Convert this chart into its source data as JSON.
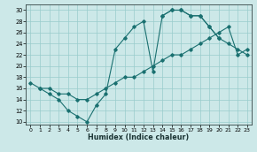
{
  "title": "",
  "xlabel": "Humidex (Indice chaleur)",
  "xlim": [
    -0.5,
    23.5
  ],
  "ylim": [
    9.5,
    31.0
  ],
  "xticks": [
    0,
    1,
    2,
    3,
    4,
    5,
    6,
    7,
    8,
    9,
    10,
    11,
    12,
    13,
    14,
    15,
    16,
    17,
    18,
    19,
    20,
    21,
    22,
    23
  ],
  "yticks": [
    10,
    12,
    14,
    16,
    18,
    20,
    22,
    24,
    26,
    28,
    30
  ],
  "bg_color": "#cce8e8",
  "line_color": "#1a7070",
  "grid_color": "#99cccc",
  "series": [
    {
      "x": [
        0,
        1,
        2,
        3,
        4,
        5,
        6,
        7,
        8,
        9,
        10,
        11,
        12,
        13,
        14,
        15,
        16,
        17,
        18,
        19,
        20
      ],
      "y": [
        17,
        16,
        15,
        14,
        12,
        11,
        10,
        13,
        15,
        23,
        25,
        27,
        28,
        19,
        29,
        30,
        30,
        29,
        29,
        27,
        25
      ]
    },
    {
      "x": [
        14,
        15,
        16,
        17,
        18,
        19,
        20,
        21,
        22,
        23
      ],
      "y": [
        29,
        30,
        30,
        29,
        29,
        27,
        25,
        24,
        23,
        22
      ]
    },
    {
      "x": [
        1,
        2,
        3,
        4,
        5,
        6,
        7,
        8,
        9,
        10,
        11,
        12,
        13,
        14,
        15,
        16,
        17,
        18,
        19,
        20,
        21,
        22,
        23
      ],
      "y": [
        16,
        16,
        15,
        15,
        14,
        14,
        15,
        16,
        17,
        18,
        18,
        19,
        20,
        21,
        22,
        22,
        23,
        24,
        25,
        26,
        27,
        22,
        23
      ]
    }
  ]
}
